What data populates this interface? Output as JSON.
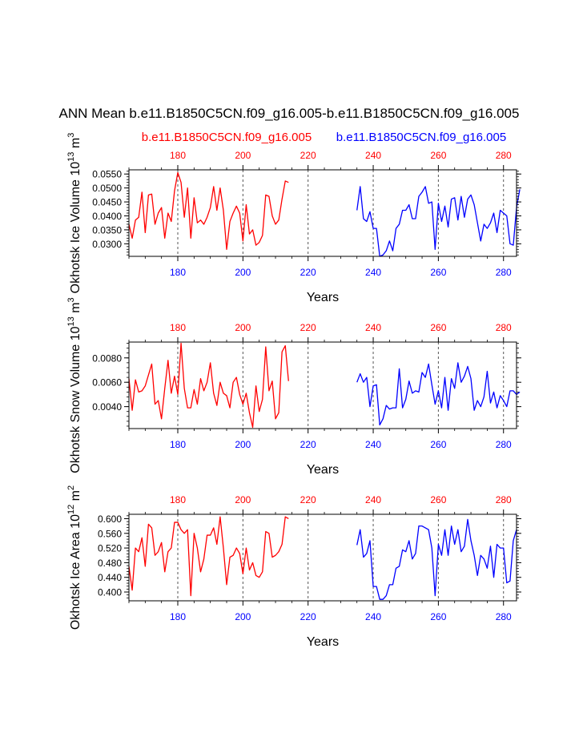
{
  "title": "ANN Mean b.e11.B1850C5CN.f09_g16.005-b.e11.B1850C5CN.f09_g16.005",
  "colors": {
    "case1": "#ff0000",
    "case2": "#0000ff",
    "axis": "#000000"
  },
  "legend": {
    "case1": "b.e11.B1850C5CN.f09_g16.005",
    "case2": "b.e11.B1850C5CN.f09_g16.005"
  },
  "chart_data": [
    {
      "type": "line",
      "ylabel": "Okhotsk Ice Volume 10",
      "ylabel_sup": "13",
      "ylabel_unit": " m",
      "ylabel_unit_sup": "3",
      "xlabel": "Years",
      "xlim": [
        165,
        284
      ],
      "ylim": [
        0.0255,
        0.0565
      ],
      "major_yticks": [
        0.03,
        0.035,
        0.04,
        0.045,
        0.05,
        0.055
      ],
      "ytick_labels": [
        "0.0300",
        "0.0350",
        "0.0400",
        "0.0450",
        "0.0500",
        "0.0550"
      ],
      "top_xticks": [
        180,
        200,
        220,
        240,
        260,
        280
      ],
      "bottom_xticks": [
        180,
        200,
        220,
        240,
        260,
        280
      ],
      "dashed_x": [
        180,
        200,
        220,
        240,
        260,
        280
      ],
      "series": [
        {
          "color": "case1",
          "x_start": 165,
          "values": [
            0.037,
            0.032,
            0.0385,
            0.0395,
            0.0485,
            0.034,
            0.0475,
            0.0478,
            0.037,
            0.041,
            0.043,
            0.032,
            0.041,
            0.038,
            0.049,
            0.0555,
            0.052,
            0.0395,
            0.05,
            0.032,
            0.0465,
            0.0375,
            0.0385,
            0.037,
            0.0395,
            0.043,
            0.0505,
            0.042,
            0.05,
            0.042,
            0.028,
            0.038,
            0.041,
            0.0435,
            0.041,
            0.031,
            0.044,
            0.0335,
            0.035,
            0.0295,
            0.0305,
            0.033,
            0.0475,
            0.047,
            0.04,
            0.037,
            0.0385,
            0.046,
            0.0525,
            0.052
          ]
        },
        {
          "color": "case2",
          "x_start": 235,
          "values": [
            0.042,
            0.0505,
            0.039,
            0.038,
            0.0415,
            0.0355,
            0.0355,
            0.0255,
            0.026,
            0.0275,
            0.031,
            0.0275,
            0.0355,
            0.037,
            0.042,
            0.042,
            0.044,
            0.039,
            0.039,
            0.047,
            0.0485,
            0.0505,
            0.0445,
            0.045,
            0.028,
            0.0445,
            0.038,
            0.0435,
            0.036,
            0.046,
            0.0465,
            0.0385,
            0.047,
            0.0395,
            0.046,
            0.0475,
            0.044,
            0.0375,
            0.031,
            0.037,
            0.0355,
            0.0375,
            0.041,
            0.034,
            0.042,
            0.041,
            0.04,
            0.03,
            0.0295,
            0.043,
            0.0495
          ]
        }
      ]
    },
    {
      "type": "line",
      "ylabel": "Okhotsk Snow Volume 10",
      "ylabel_sup": "13",
      "ylabel_unit": " m",
      "ylabel_unit_sup": "3",
      "xlabel": "Years",
      "xlim": [
        165,
        284
      ],
      "ylim": [
        0.0022,
        0.0093
      ],
      "major_yticks": [
        0.004,
        0.006,
        0.008
      ],
      "ytick_labels": [
        "0.0040",
        "0.0060",
        "0.0080"
      ],
      "top_xticks": [
        180,
        200,
        220,
        240,
        260,
        280
      ],
      "bottom_xticks": [
        180,
        200,
        220,
        240,
        260,
        280
      ],
      "dashed_x": [
        180,
        200,
        220,
        240,
        260,
        280
      ],
      "series": [
        {
          "color": "case1",
          "x_start": 165,
          "values": [
            0.0063,
            0.0037,
            0.0062,
            0.0052,
            0.0053,
            0.0057,
            0.0066,
            0.0075,
            0.0042,
            0.0045,
            0.003,
            0.0055,
            0.0078,
            0.0051,
            0.0065,
            0.005,
            0.0092,
            0.0055,
            0.0039,
            0.0039,
            0.0054,
            0.0042,
            0.0063,
            0.0053,
            0.006,
            0.0076,
            0.0051,
            0.0041,
            0.006,
            0.0051,
            0.0049,
            0.0039,
            0.006,
            0.0064,
            0.005,
            0.0042,
            0.0051,
            0.0035,
            0.0023,
            0.0057,
            0.0036,
            0.0046,
            0.0089,
            0.0053,
            0.0061,
            0.003,
            0.0035,
            0.0085,
            0.009,
            0.0061
          ]
        },
        {
          "color": "case2",
          "x_start": 235,
          "values": [
            0.006,
            0.0067,
            0.006,
            0.0064,
            0.004,
            0.0057,
            0.0058,
            0.0025,
            0.003,
            0.0041,
            0.0038,
            0.0039,
            0.0039,
            0.0071,
            0.0039,
            0.0046,
            0.0061,
            0.0051,
            0.0053,
            0.0052,
            0.0068,
            0.0064,
            0.0075,
            0.0058,
            0.0042,
            0.0053,
            0.0039,
            0.0064,
            0.0037,
            0.0063,
            0.0055,
            0.0076,
            0.006,
            0.0065,
            0.0073,
            0.0063,
            0.0037,
            0.0045,
            0.004,
            0.0048,
            0.0069,
            0.0043,
            0.0052,
            0.0039,
            0.0049,
            0.0045,
            0.004,
            0.0053,
            0.0053,
            0.005,
            0.0052
          ]
        }
      ]
    },
    {
      "type": "line",
      "ylabel": "Okhotsk Ice Area 10",
      "ylabel_sup": "12",
      "ylabel_unit": " m",
      "ylabel_unit_sup": "2",
      "xlabel": "Years",
      "xlim": [
        165,
        284
      ],
      "ylim": [
        0.376,
        0.612
      ],
      "major_yticks": [
        0.4,
        0.44,
        0.48,
        0.52,
        0.56,
        0.6
      ],
      "ytick_labels": [
        "0.400",
        "0.440",
        "0.480",
        "0.520",
        "0.560",
        "0.600"
      ],
      "top_xticks": [
        180,
        200,
        220,
        240,
        260,
        280
      ],
      "bottom_xticks": [
        180,
        200,
        220,
        240,
        260,
        280
      ],
      "dashed_x": [
        180,
        200,
        220,
        240,
        260,
        280
      ],
      "series": [
        {
          "color": "case1",
          "x_start": 165,
          "values": [
            0.47,
            0.405,
            0.52,
            0.51,
            0.548,
            0.47,
            0.585,
            0.575,
            0.5,
            0.51,
            0.535,
            0.455,
            0.51,
            0.52,
            0.59,
            0.59,
            0.57,
            0.56,
            0.57,
            0.39,
            0.56,
            0.52,
            0.455,
            0.49,
            0.555,
            0.555,
            0.575,
            0.53,
            0.605,
            0.52,
            0.42,
            0.495,
            0.5,
            0.52,
            0.505,
            0.45,
            0.52,
            0.46,
            0.48,
            0.445,
            0.44,
            0.455,
            0.565,
            0.56,
            0.495,
            0.5,
            0.51,
            0.53,
            0.605,
            0.6
          ]
        },
        {
          "color": "case2",
          "x_start": 235,
          "values": [
            0.528,
            0.57,
            0.495,
            0.505,
            0.54,
            0.415,
            0.415,
            0.38,
            0.38,
            0.39,
            0.42,
            0.42,
            0.465,
            0.47,
            0.515,
            0.51,
            0.54,
            0.49,
            0.505,
            0.58,
            0.58,
            0.575,
            0.57,
            0.52,
            0.39,
            0.53,
            0.5,
            0.57,
            0.5,
            0.58,
            0.53,
            0.57,
            0.51,
            0.525,
            0.598,
            0.54,
            0.5,
            0.445,
            0.5,
            0.49,
            0.465,
            0.525,
            0.44,
            0.53,
            0.52,
            0.52,
            0.425,
            0.43,
            0.54,
            0.57
          ]
        }
      ]
    }
  ]
}
